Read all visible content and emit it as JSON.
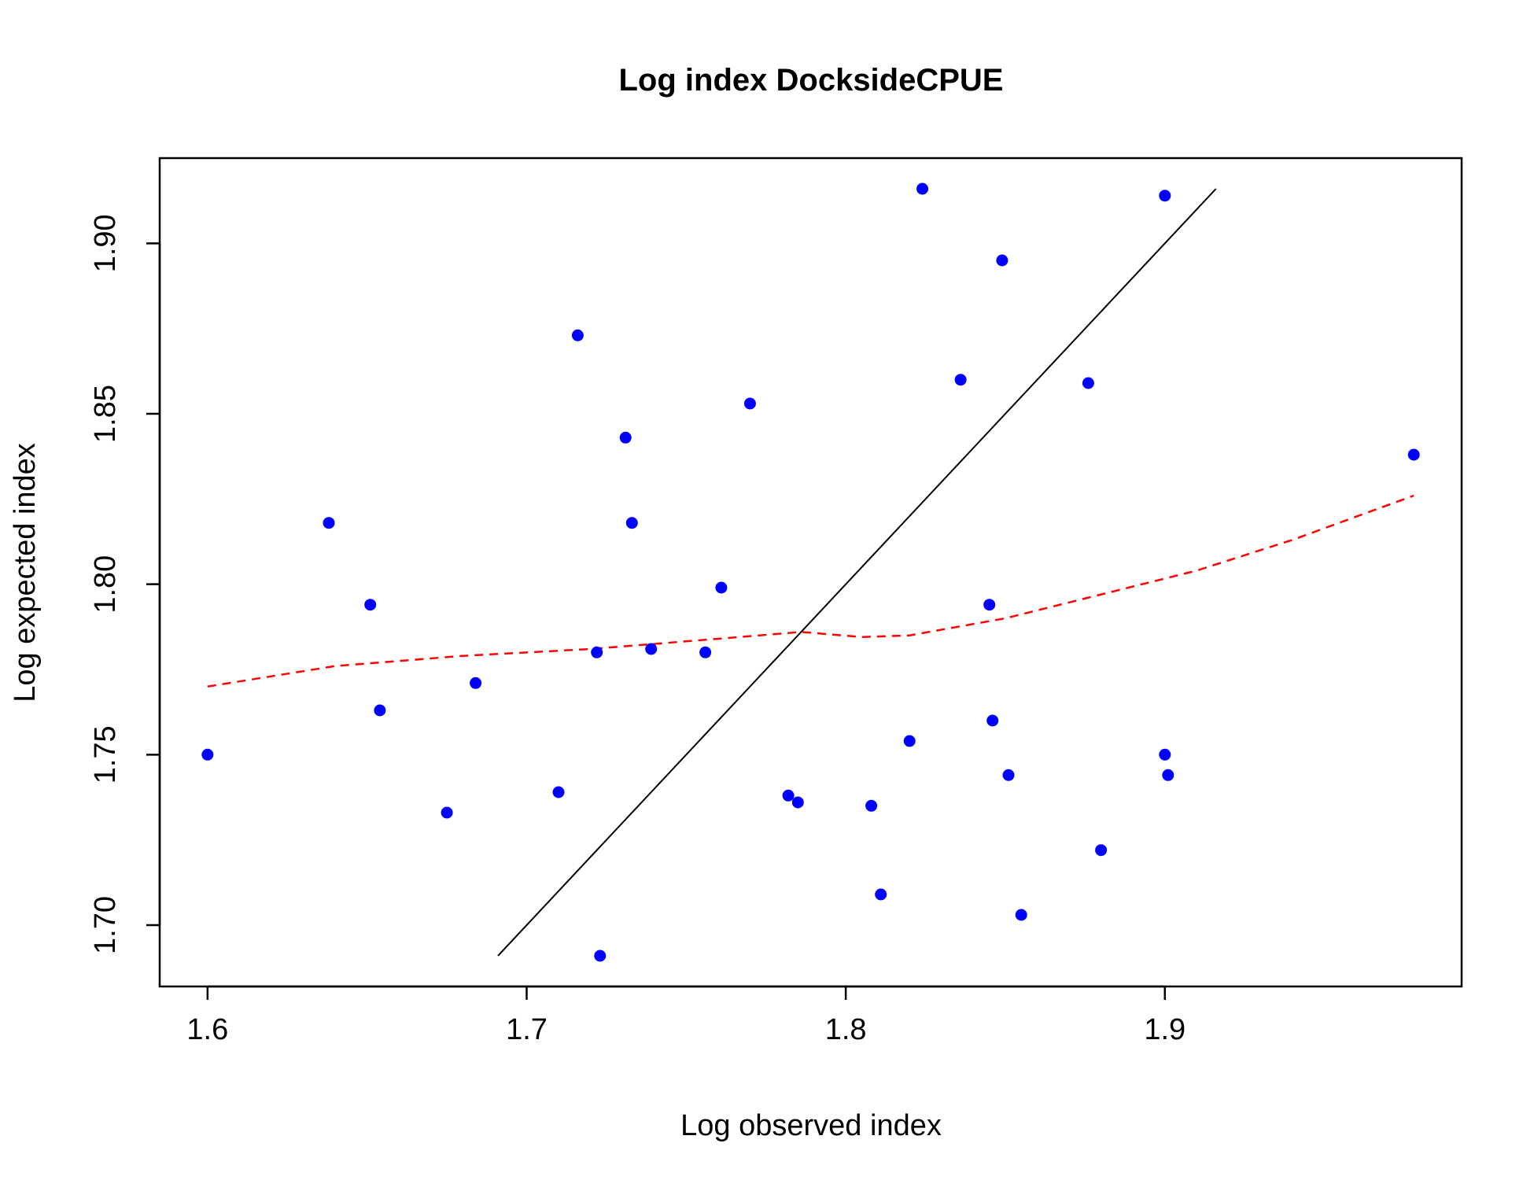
{
  "chart_data": {
    "type": "scatter",
    "title": "Log index DocksideCPUE",
    "xlabel": "Log observed index",
    "ylabel": "Log expected index",
    "xlim": [
      1.585,
      1.993
    ],
    "ylim": [
      1.682,
      1.925
    ],
    "x_ticks": [
      "1.6",
      "1.7",
      "1.8",
      "1.9"
    ],
    "y_ticks": [
      "1.70",
      "1.75",
      "1.80",
      "1.85",
      "1.90"
    ],
    "grid": false,
    "legend": "none",
    "colors": {
      "points": "#0000ff",
      "identity_line": "#000000",
      "smoother": "#ff0000",
      "frame": "#000000"
    },
    "series": [
      {
        "type": "scatter",
        "points": [
          {
            "x": 1.6,
            "y": 1.75
          },
          {
            "x": 1.638,
            "y": 1.818
          },
          {
            "x": 1.651,
            "y": 1.794
          },
          {
            "x": 1.654,
            "y": 1.763
          },
          {
            "x": 1.675,
            "y": 1.733
          },
          {
            "x": 1.684,
            "y": 1.771
          },
          {
            "x": 1.71,
            "y": 1.739
          },
          {
            "x": 1.716,
            "y": 1.873
          },
          {
            "x": 1.722,
            "y": 1.78
          },
          {
            "x": 1.723,
            "y": 1.691
          },
          {
            "x": 1.731,
            "y": 1.843
          },
          {
            "x": 1.733,
            "y": 1.818
          },
          {
            "x": 1.739,
            "y": 1.781
          },
          {
            "x": 1.756,
            "y": 1.78
          },
          {
            "x": 1.761,
            "y": 1.799
          },
          {
            "x": 1.77,
            "y": 1.853
          },
          {
            "x": 1.782,
            "y": 1.738
          },
          {
            "x": 1.785,
            "y": 1.736
          },
          {
            "x": 1.808,
            "y": 1.735
          },
          {
            "x": 1.811,
            "y": 1.709
          },
          {
            "x": 1.82,
            "y": 1.754
          },
          {
            "x": 1.824,
            "y": 1.916
          },
          {
            "x": 1.836,
            "y": 1.86
          },
          {
            "x": 1.845,
            "y": 1.794
          },
          {
            "x": 1.846,
            "y": 1.76
          },
          {
            "x": 1.849,
            "y": 1.895
          },
          {
            "x": 1.851,
            "y": 1.744
          },
          {
            "x": 1.855,
            "y": 1.703
          },
          {
            "x": 1.876,
            "y": 1.859
          },
          {
            "x": 1.88,
            "y": 1.722
          },
          {
            "x": 1.9,
            "y": 1.914
          },
          {
            "x": 1.9,
            "y": 1.75
          },
          {
            "x": 1.901,
            "y": 1.744
          },
          {
            "x": 1.978,
            "y": 1.838
          }
        ]
      },
      {
        "type": "line",
        "style": "solid",
        "x": [
          1.691,
          1.916
        ],
        "y": [
          1.691,
          1.916
        ]
      },
      {
        "type": "line",
        "style": "dashed",
        "x": [
          1.6,
          1.64,
          1.68,
          1.72,
          1.76,
          1.786,
          1.805,
          1.82,
          1.85,
          1.88,
          1.91,
          1.94,
          1.978
        ],
        "y": [
          1.77,
          1.776,
          1.779,
          1.781,
          1.784,
          1.786,
          1.7845,
          1.785,
          1.79,
          1.797,
          1.804,
          1.813,
          1.826
        ]
      }
    ]
  }
}
